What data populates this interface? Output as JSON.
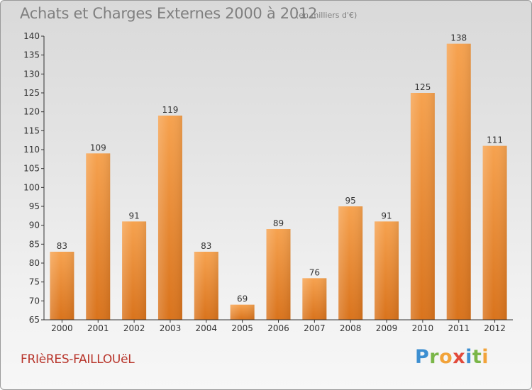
{
  "header": {
    "title": "Achats et Charges Externes 2000 à 2012",
    "subtitle": "(en milliers d'€)"
  },
  "footer": {
    "commune": "FRIèRES-FAILLOUëL",
    "logo": [
      "P",
      "r",
      "o",
      "x",
      "i",
      "t",
      "i"
    ]
  },
  "colors": {
    "bar_top": "#f6a24f",
    "bar_bottom": "#d9731c",
    "axis": "#333333",
    "grid": "#c8c8c8",
    "label": "#333333"
  },
  "chart_data": {
    "type": "bar",
    "title": "Achats et Charges Externes 2000 à 2012",
    "subtitle": "(en milliers d'€)",
    "categories": [
      "2000",
      "2001",
      "2002",
      "2003",
      "2004",
      "2005",
      "2006",
      "2007",
      "2008",
      "2009",
      "2010",
      "2011",
      "2012"
    ],
    "values": [
      83,
      109,
      91,
      119,
      83,
      69,
      89,
      76,
      95,
      91,
      125,
      138,
      111
    ],
    "ylim": [
      65,
      140
    ],
    "yticks": [
      65,
      70,
      75,
      80,
      85,
      90,
      95,
      100,
      105,
      110,
      115,
      120,
      125,
      130,
      135,
      140
    ],
    "grid": false,
    "data_labels": true
  }
}
